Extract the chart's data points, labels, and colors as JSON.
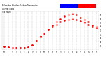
{
  "title": "Milwaukee Weather Outdoor Temperature\nvs Heat Index\n(24 Hours)",
  "background_color": "#ffffff",
  "plot_bg_color": "#ffffff",
  "text_color": "#000000",
  "grid_color": "#aaaaaa",
  "dot_color": "#ff0000",
  "legend_temp_color": "#0000ff",
  "legend_heat_color": "#ff0000",
  "legend_temp_label": "Temp",
  "legend_heat_label": "Heat Index",
  "xlim": [
    -0.5,
    23.5
  ],
  "ylim": [
    50,
    100
  ],
  "ylabel_values": [
    55,
    60,
    65,
    70,
    75,
    80,
    85,
    90,
    95
  ],
  "x_ticks": [
    0,
    1,
    2,
    3,
    4,
    5,
    6,
    7,
    8,
    9,
    10,
    11,
    12,
    13,
    14,
    15,
    16,
    17,
    18,
    19,
    20,
    21,
    22,
    23
  ],
  "x_tick_labels": [
    "12",
    "1",
    "2",
    "3",
    "4",
    "5",
    "6",
    "7",
    "8",
    "9",
    "10",
    "11",
    "12",
    "1",
    "2",
    "3",
    "4",
    "5",
    "6",
    "7",
    "8",
    "9",
    "10",
    "11"
  ],
  "temp_x": [
    0,
    1,
    2,
    3,
    4,
    5,
    6,
    7,
    8,
    9,
    10,
    11,
    12,
    13,
    14,
    15,
    16,
    17,
    18,
    19,
    20,
    21,
    22,
    23
  ],
  "temp_y": [
    55,
    54,
    53,
    53,
    53,
    53,
    54,
    57,
    62,
    67,
    71,
    76,
    80,
    83,
    86,
    88,
    89,
    90,
    89,
    87,
    85,
    83,
    80,
    78
  ],
  "heat_y": [
    55,
    54,
    53,
    53,
    53,
    53,
    54,
    57,
    62,
    67,
    71,
    76,
    82,
    86,
    90,
    93,
    95,
    96,
    95,
    92,
    89,
    86,
    82,
    80
  ]
}
